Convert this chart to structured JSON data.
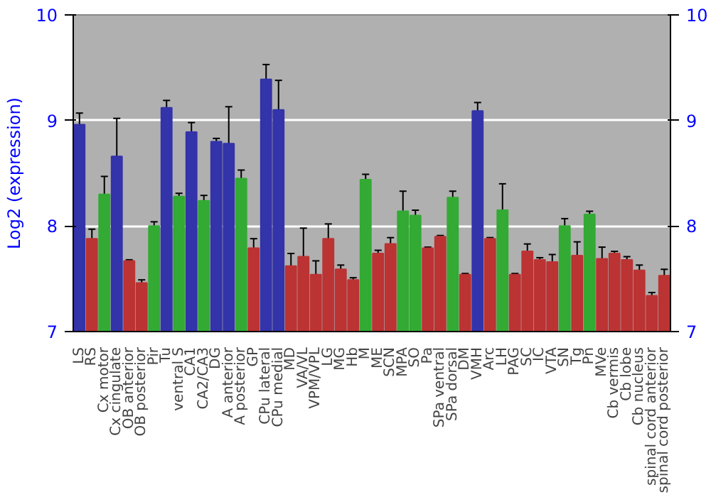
{
  "chart_data": {
    "type": "bar",
    "ylabel": "Log2 (expression)",
    "categories": [
      "LS",
      "RS",
      "Cx motor",
      "Cx cingulate",
      "OB anterior",
      "OB posterior",
      "Pir",
      "Tu",
      "ventral S",
      "CA1",
      "CA2/CA3",
      "DG",
      "A anterior",
      "A posterior",
      "GP",
      "CPu lateral",
      "CPu medial",
      "MD",
      "VA/VL",
      "VPM/VPL",
      "LG",
      "MG",
      "Hb",
      "M",
      "ME",
      "SCN",
      "MPA",
      "SO",
      "Pa",
      "SPa ventral",
      "SPa dorsal",
      "DM",
      "VMH",
      "Arc",
      "LH",
      "PAG",
      "SC",
      "IC",
      "VTA",
      "SN",
      "Tg",
      "Pn",
      "MVe",
      "Cb vermis",
      "Cb lobe",
      "Cb nucleus",
      "spinal cord anterior",
      "spinal cord posterior"
    ],
    "values": [
      8.96,
      7.88,
      8.3,
      8.66,
      7.67,
      7.46,
      8.0,
      9.12,
      8.28,
      8.89,
      8.24,
      8.8,
      8.78,
      8.45,
      7.79,
      9.39,
      9.1,
      7.62,
      7.71,
      7.54,
      7.88,
      7.59,
      7.49,
      8.44,
      7.74,
      7.83,
      8.14,
      8.1,
      7.79,
      7.9,
      8.27,
      7.54,
      9.09,
      7.88,
      8.15,
      7.54,
      7.76,
      7.68,
      7.66,
      8.0,
      7.72,
      8.11,
      7.69,
      7.74,
      7.68,
      7.58,
      7.34,
      7.53
    ],
    "errors": [
      0.11,
      0.09,
      0.17,
      0.36,
      0.01,
      0.03,
      0.04,
      0.07,
      0.03,
      0.09,
      0.05,
      0.03,
      0.35,
      0.08,
      0.09,
      0.14,
      0.28,
      0.12,
      0.27,
      0.13,
      0.14,
      0.04,
      0.02,
      0.05,
      0.03,
      0.06,
      0.19,
      0.05,
      0.01,
      0.01,
      0.06,
      0.01,
      0.08,
      0.01,
      0.25,
      0.01,
      0.07,
      0.02,
      0.07,
      0.07,
      0.13,
      0.03,
      0.11,
      0.02,
      0.03,
      0.05,
      0.03,
      0.06
    ],
    "colors": [
      "#3333aa",
      "#bb3333",
      "#33aa33",
      "#3333aa",
      "#bb3333",
      "#bb3333",
      "#33aa33",
      "#3333aa",
      "#33aa33",
      "#3333aa",
      "#33aa33",
      "#3333aa",
      "#3333aa",
      "#33aa33",
      "#bb3333",
      "#3333aa",
      "#3333aa",
      "#bb3333",
      "#bb3333",
      "#bb3333",
      "#bb3333",
      "#bb3333",
      "#bb3333",
      "#33aa33",
      "#bb3333",
      "#bb3333",
      "#33aa33",
      "#33aa33",
      "#bb3333",
      "#bb3333",
      "#33aa33",
      "#bb3333",
      "#3333aa",
      "#bb3333",
      "#33aa33",
      "#bb3333",
      "#bb3333",
      "#bb3333",
      "#bb3333",
      "#33aa33",
      "#bb3333",
      "#33aa33",
      "#bb3333",
      "#bb3333",
      "#bb3333",
      "#bb3333",
      "#bb3333",
      "#bb3333"
    ],
    "ylim": [
      7,
      10
    ],
    "yticks": [
      7,
      8,
      9,
      10
    ],
    "y2lim": [
      7,
      10
    ],
    "y2ticks": [
      7,
      8,
      9,
      10
    ],
    "grid": "y"
  }
}
